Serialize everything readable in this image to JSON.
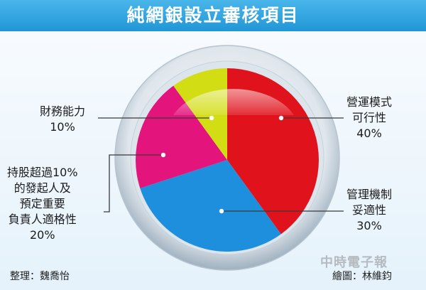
{
  "title": "純網銀設立審核項目",
  "chart_data": {
    "type": "pie",
    "slices": [
      {
        "label_lines": [
          "營運模式",
          "可行性"
        ],
        "value": 40,
        "value_label": "40%",
        "color": "#e0121c"
      },
      {
        "label_lines": [
          "管理機制",
          "妥適性"
        ],
        "value": 30,
        "value_label": "30%",
        "color": "#1e8fdc"
      },
      {
        "label_lines": [
          "持股超過10%",
          "的發起人及",
          "預定重要",
          "負責人適格性"
        ],
        "value": 20,
        "value_label": "20%",
        "color": "#e3157c"
      },
      {
        "label_lines": [
          "財務能力"
        ],
        "value": 10,
        "value_label": "10%",
        "color": "#d3dd14"
      }
    ]
  },
  "credits": {
    "compiler": "整理：魏喬怡",
    "illustrator": "繪圖：林維鈞"
  },
  "watermark": "中時電子報"
}
